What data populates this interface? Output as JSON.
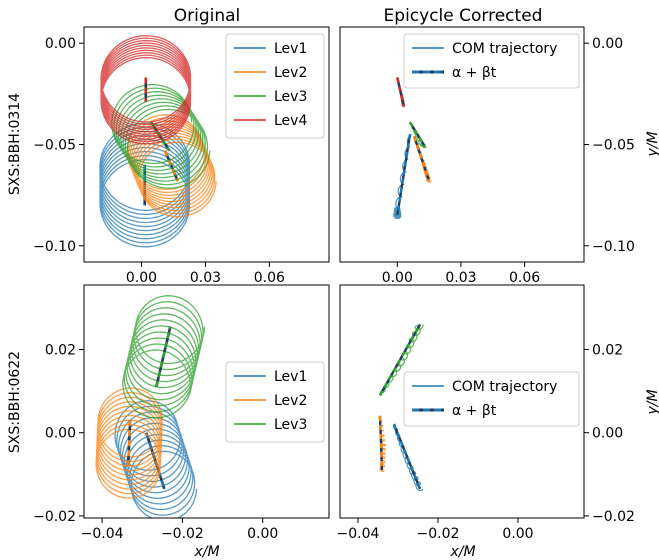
{
  "figure": {
    "col_titles": [
      "Original",
      "Epicycle Corrected"
    ],
    "row_labels": [
      "SXS:BBH:0314",
      "SXS:BBH:0622"
    ],
    "xlabel": "x/M",
    "ylabel": "y/M"
  },
  "colors": {
    "Lev1": "#1f77b4",
    "Lev2": "#ff7f0e",
    "Lev3": "#2ca02c",
    "Lev4": "#d62728"
  },
  "chart_data": [
    {
      "type": "line",
      "panel": "SXS:BBH:0314 Original",
      "xlim": [
        -0.027,
        0.088
      ],
      "ylim": [
        -0.108,
        0.008
      ],
      "xticks": [
        0.0,
        0.03,
        0.06
      ],
      "xticklabels": [
        "0.00",
        "0.03",
        "0.06"
      ],
      "yticks": [
        0.0,
        -0.05,
        -0.1
      ],
      "yticklabels": [
        "0.00",
        "−0.05",
        "−0.10"
      ],
      "legend": [
        "Lev1",
        "Lev2",
        "Lev3",
        "Lev4"
      ],
      "legend_loc": "upper right",
      "series": [
        {
          "name": "Lev1",
          "center": [
            0.0015,
            -0.06
          ],
          "center_end": [
            0.0015,
            -0.08
          ],
          "radius": 0.021,
          "loops": 10
        },
        {
          "name": "Lev2",
          "center": [
            0.011,
            -0.053
          ],
          "center_end": [
            0.017,
            -0.068
          ],
          "radius": 0.018,
          "loops": 10
        },
        {
          "name": "Lev3",
          "center": [
            0.0045,
            -0.039
          ],
          "center_end": [
            0.013,
            -0.053
          ],
          "radius": 0.019,
          "loops": 8
        },
        {
          "name": "Lev4",
          "center": [
            0.002,
            -0.017
          ],
          "center_end": [
            0.002,
            -0.029
          ],
          "radius": 0.021,
          "loops": 10
        }
      ]
    },
    {
      "type": "line",
      "panel": "SXS:BBH:0314 Epicycle Corrected",
      "xlim": [
        -0.027,
        0.088
      ],
      "ylim": [
        -0.108,
        0.008
      ],
      "xticks": [
        0.0,
        0.03,
        0.06
      ],
      "xticklabels": [
        "0.00",
        "0.03",
        "0.06"
      ],
      "yticks": [
        0.0,
        -0.05,
        -0.1
      ],
      "yticklabels": [
        "0.00",
        "−0.05",
        "−0.10"
      ],
      "legend": [
        "COM trajectory",
        "α + βt"
      ],
      "legend_loc": "upper right",
      "series": [
        {
          "name": "Lev1",
          "x": [
            0.006,
            0.0,
            0.0
          ],
          "y": [
            -0.045,
            -0.082,
            -0.085
          ]
        },
        {
          "name": "Lev2",
          "x": [
            0.008,
            0.012,
            0.015
          ],
          "y": [
            -0.046,
            -0.058,
            -0.068
          ]
        },
        {
          "name": "Lev3",
          "x": [
            0.006,
            0.011,
            0.013
          ],
          "y": [
            -0.039,
            -0.05,
            -0.051
          ]
        },
        {
          "name": "Lev4",
          "x": [
            0.0,
            0.002,
            0.003
          ],
          "y": [
            -0.017,
            -0.025,
            -0.031
          ]
        }
      ]
    },
    {
      "type": "line",
      "panel": "SXS:BBH:0622 Original",
      "xlim": [
        -0.0445,
        0.0165
      ],
      "ylim": [
        -0.0205,
        0.0355
      ],
      "xticks": [
        -0.04,
        -0.02,
        0.0
      ],
      "xticklabels": [
        "−0.04",
        "−0.02",
        "0.00"
      ],
      "yticks": [
        0.02,
        0.0,
        -0.02
      ],
      "yticklabels": [
        "0.02",
        "0.00",
        "−0.02"
      ],
      "legend": [
        "Lev1",
        "Lev2",
        "Lev3"
      ],
      "legend_loc": "center right",
      "series": [
        {
          "name": "Lev1",
          "center": [
            -0.029,
            0.0
          ],
          "center_end": [
            -0.0245,
            -0.0135
          ],
          "radius": 0.008,
          "loops": 10
        },
        {
          "name": "Lev2",
          "center": [
            -0.033,
            0.003
          ],
          "center_end": [
            -0.0335,
            -0.008
          ],
          "radius": 0.008,
          "loops": 10
        },
        {
          "name": "Lev3",
          "center": [
            -0.0265,
            0.011
          ],
          "center_end": [
            -0.023,
            0.0255
          ],
          "radius": 0.0085,
          "loops": 10
        }
      ]
    },
    {
      "type": "line",
      "panel": "SXS:BBH:0622 Epicycle Corrected",
      "xlim": [
        -0.0445,
        0.0165
      ],
      "ylim": [
        -0.0205,
        0.0355
      ],
      "xticks": [
        -0.04,
        -0.02,
        0.0
      ],
      "xticklabels": [
        "−0.04",
        "−0.02",
        "0.00"
      ],
      "yticks": [
        0.02,
        0.0,
        -0.02
      ],
      "yticklabels": [
        "0.02",
        "0.00",
        "−0.02"
      ],
      "legend": [
        "COM trajectory",
        "α + βt"
      ],
      "legend_loc": "center right",
      "series": [
        {
          "name": "Lev1",
          "x": [
            -0.031,
            -0.028,
            -0.0245
          ],
          "y": [
            0.002,
            -0.006,
            -0.0135
          ]
        },
        {
          "name": "Lev2",
          "x": [
            -0.0345,
            -0.0335,
            -0.034
          ],
          "y": [
            0.004,
            -0.003,
            -0.009
          ]
        },
        {
          "name": "Lev3",
          "x": [
            -0.0345,
            -0.029,
            -0.0245
          ],
          "y": [
            0.009,
            0.017,
            0.026
          ]
        }
      ]
    }
  ]
}
